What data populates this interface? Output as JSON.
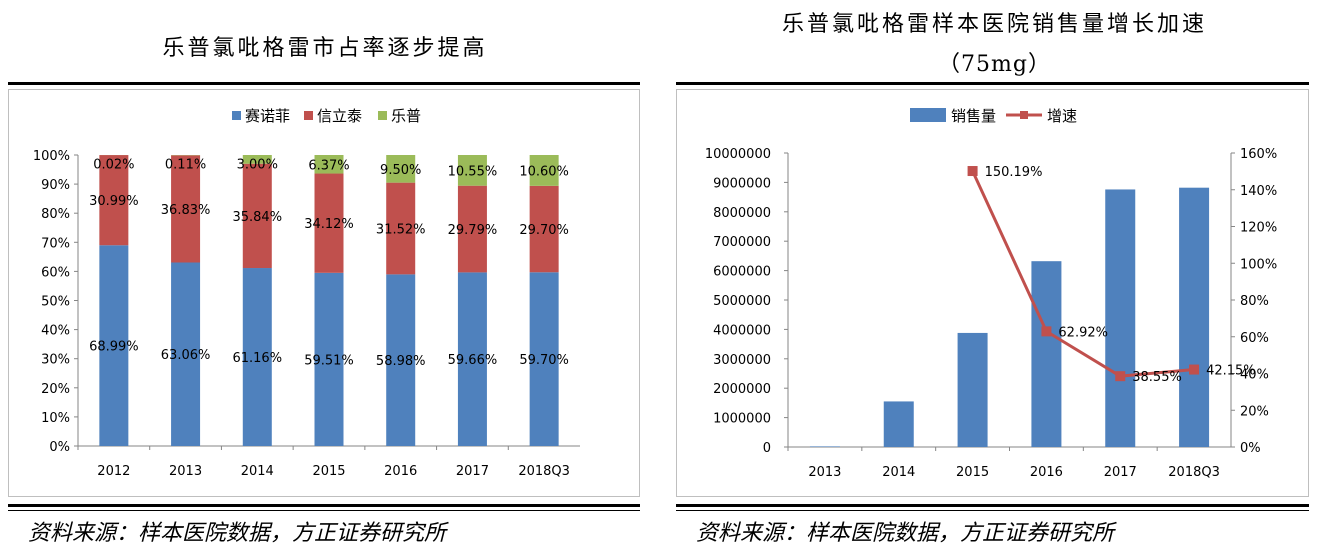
{
  "left": {
    "title": "乐普氯吡格雷市占率逐步提高",
    "source": "资料来源：样本医院数据，方正证券研究所",
    "legend": [
      {
        "label": "赛诺菲",
        "color": "#4f81bd"
      },
      {
        "label": "信立泰",
        "color": "#c0504d"
      },
      {
        "label": "乐普",
        "color": "#9bbb59"
      }
    ]
  },
  "right": {
    "title_line1": "乐普氯吡格雷样本医院销售量增长加速",
    "title_line2": "（75mg）",
    "source": "资料来源：样本医院数据，方正证券研究所",
    "legend": [
      {
        "label": "销售量",
        "color": "#4f81bd"
      },
      {
        "label": "增速",
        "color": "#c0504d"
      }
    ]
  },
  "chart_data": [
    {
      "type": "bar",
      "stacked": true,
      "percent": true,
      "categories": [
        "2012",
        "2013",
        "2014",
        "2015",
        "2016",
        "2017",
        "2018Q3"
      ],
      "series": [
        {
          "name": "赛诺菲",
          "values": [
            68.99,
            63.06,
            61.16,
            59.51,
            58.98,
            59.66,
            59.7
          ],
          "labels": [
            "68.99%",
            "63.06%",
            "61.16%",
            "59.51%",
            "58.98%",
            "59.66%",
            "59.70%"
          ]
        },
        {
          "name": "信立泰",
          "values": [
            30.99,
            36.83,
            35.84,
            34.12,
            31.52,
            29.79,
            29.7
          ],
          "labels": [
            "30.99%",
            "36.83%",
            "35.84%",
            "34.12%",
            "31.52%",
            "29.79%",
            "29.70%"
          ]
        },
        {
          "name": "乐普",
          "values": [
            0.02,
            0.11,
            3.0,
            6.37,
            9.5,
            10.55,
            10.6
          ],
          "labels": [
            "0.02%",
            "0.11%",
            "3.00%",
            "6.37%",
            "9.50%",
            "10.55%",
            "10.60%"
          ]
        }
      ],
      "yticks": [
        "0%",
        "10%",
        "20%",
        "30%",
        "40%",
        "50%",
        "60%",
        "70%",
        "80%",
        "90%",
        "100%"
      ],
      "ylim": [
        0,
        100
      ],
      "legend_position": "top"
    },
    {
      "type": "bar",
      "categories": [
        "2013",
        "2014",
        "2015",
        "2016",
        "2017",
        "2018Q3"
      ],
      "series": [
        {
          "name": "销售量",
          "axis": "left",
          "values": [
            20000,
            1550000,
            3880000,
            6320000,
            8760000,
            8820000
          ]
        },
        {
          "name": "增速",
          "axis": "right",
          "type": "line",
          "values": [
            null,
            null,
            150.19,
            62.92,
            38.55,
            42.15
          ],
          "labels": [
            "",
            "",
            "150.19%",
            "62.92%",
            "38.55%",
            "42.15%"
          ]
        }
      ],
      "yticks_left": [
        "0",
        "1000000",
        "2000000",
        "3000000",
        "4000000",
        "5000000",
        "6000000",
        "7000000",
        "8000000",
        "9000000",
        "10000000"
      ],
      "yticks_right": [
        "0%",
        "20%",
        "40%",
        "60%",
        "80%",
        "100%",
        "120%",
        "140%",
        "160%"
      ],
      "ylim_left": [
        0,
        10000000
      ],
      "ylim_right": [
        0,
        160
      ],
      "legend_position": "top"
    }
  ]
}
